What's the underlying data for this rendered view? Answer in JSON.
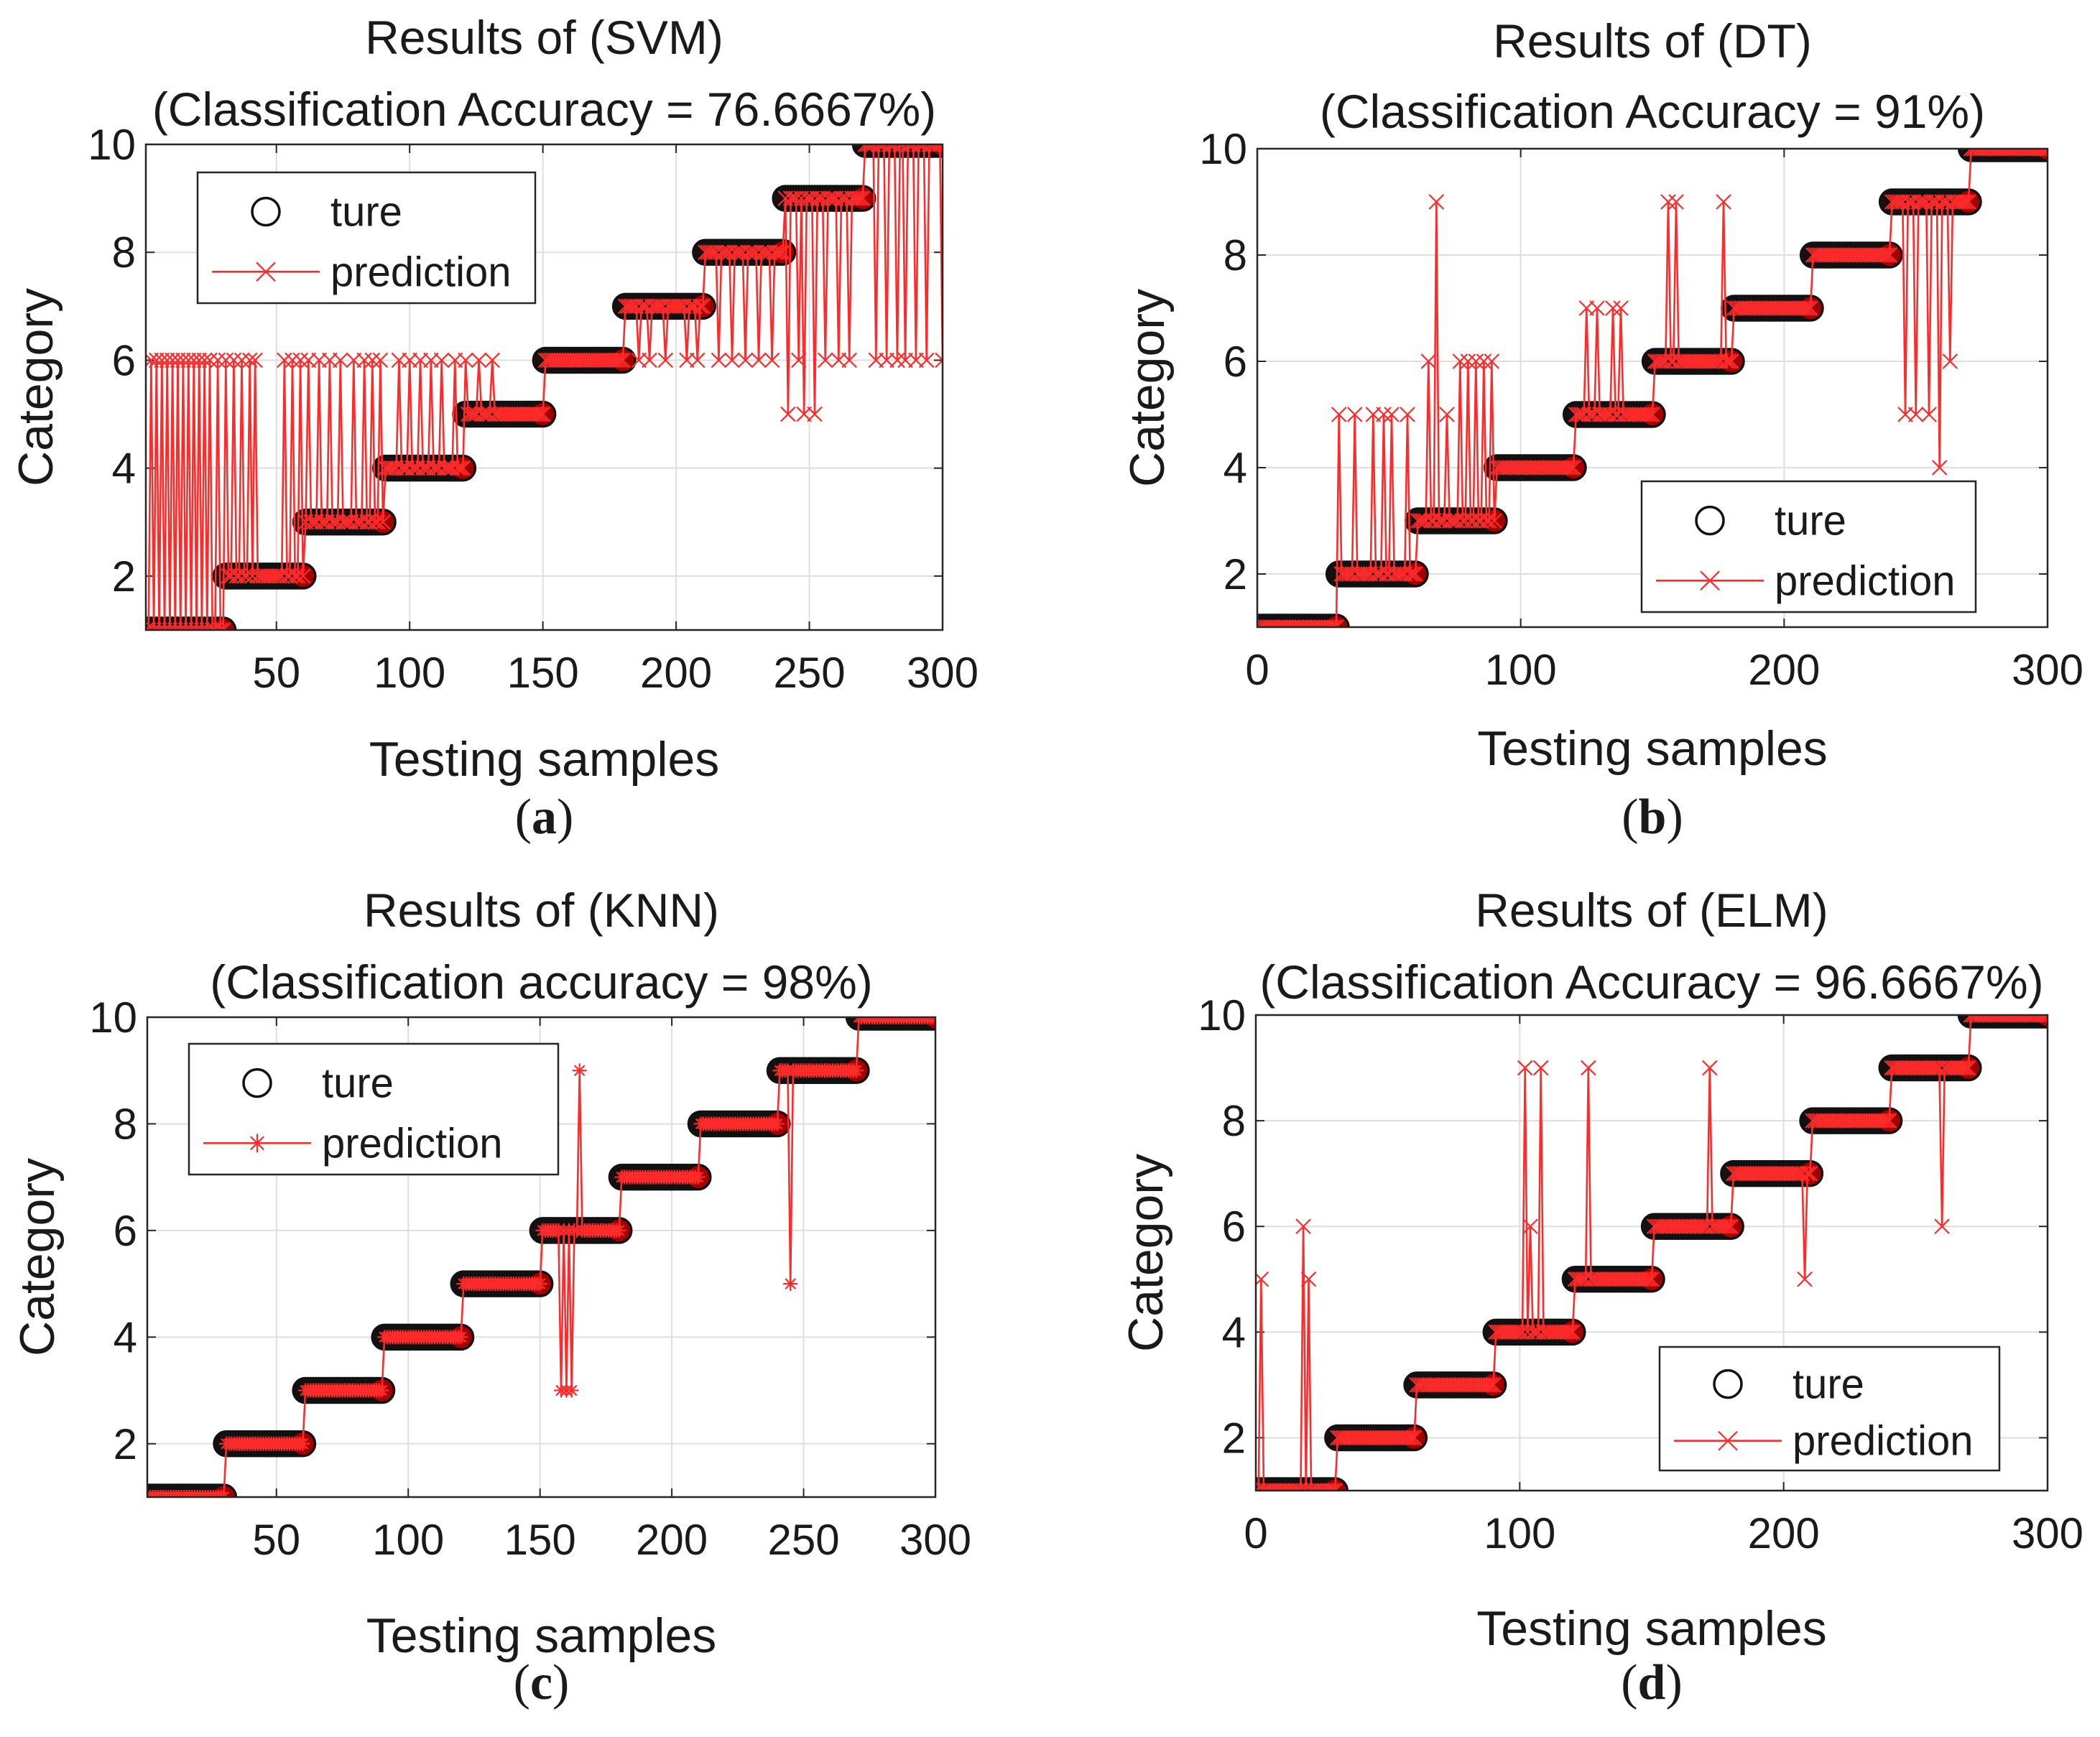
{
  "chart_data": [
    {
      "type": "line",
      "panel": "a",
      "panel_label": "(a)",
      "panel_letter": "a",
      "title_line1": "Results of (SVM)",
      "title_line2": "(Classification Accuracy = 76.6667%)",
      "xlabel": "Testing samples",
      "ylabel": "Category",
      "xlim": [
        1,
        300
      ],
      "ylim": [
        1,
        10
      ],
      "xticks": [
        50,
        100,
        150,
        200,
        250,
        300
      ],
      "yticks": [
        2,
        4,
        6,
        8,
        10
      ],
      "grid": true,
      "legend": {
        "position": "top-left",
        "true_label": "ture",
        "pred_label": "prediction",
        "marker": "x"
      },
      "series": [
        {
          "name": "ture",
          "style": "circle-black",
          "segments": [
            [
              1,
              30,
              1
            ],
            [
              31,
              60,
              2
            ],
            [
              61,
              90,
              3
            ],
            [
              91,
              120,
              4
            ],
            [
              121,
              150,
              5
            ],
            [
              151,
              180,
              6
            ],
            [
              181,
              210,
              7
            ],
            [
              211,
              240,
              8
            ],
            [
              241,
              270,
              9
            ],
            [
              271,
              300,
              10
            ]
          ]
        },
        {
          "name": "prediction",
          "style": "red-line-x",
          "deviations": [
            [
              3,
              6
            ],
            [
              5,
              6
            ],
            [
              7,
              6
            ],
            [
              9,
              6
            ],
            [
              11,
              6
            ],
            [
              13,
              6
            ],
            [
              15,
              6
            ],
            [
              17,
              6
            ],
            [
              19,
              6
            ],
            [
              21,
              6
            ],
            [
              23,
              6
            ],
            [
              25,
              6
            ],
            [
              28,
              6
            ],
            [
              31,
              6
            ],
            [
              34,
              6
            ],
            [
              37,
              6
            ],
            [
              40,
              6
            ],
            [
              42,
              6
            ],
            [
              53,
              6
            ],
            [
              56,
              6
            ],
            [
              59,
              6
            ],
            [
              62,
              6
            ],
            [
              66,
              6
            ],
            [
              70,
              6
            ],
            [
              74,
              6
            ],
            [
              79,
              6
            ],
            [
              83,
              6
            ],
            [
              86,
              6
            ],
            [
              89,
              6
            ],
            [
              96,
              6
            ],
            [
              100,
              6
            ],
            [
              104,
              6
            ],
            [
              108,
              6
            ],
            [
              112,
              6
            ],
            [
              117,
              6
            ],
            [
              121,
              6
            ],
            [
              126,
              6
            ],
            [
              131,
              6
            ],
            [
              186,
              6
            ],
            [
              190,
              6
            ],
            [
              196,
              6
            ],
            [
              204,
              6
            ],
            [
              208,
              6
            ],
            [
              216,
              6
            ],
            [
              221,
              6
            ],
            [
              226,
              6
            ],
            [
              231,
              6
            ],
            [
              236,
              6
            ],
            [
              242,
              5
            ],
            [
              246,
              6
            ],
            [
              248,
              5
            ],
            [
              252,
              5
            ],
            [
              256,
              6
            ],
            [
              261,
              6
            ],
            [
              265,
              6
            ],
            [
              275,
              6
            ],
            [
              279,
              6
            ],
            [
              283,
              6
            ],
            [
              286,
              6
            ],
            [
              290,
              6
            ],
            [
              294,
              6
            ],
            [
              300,
              6
            ]
          ]
        }
      ]
    },
    {
      "type": "line",
      "panel": "b",
      "panel_label": "(b)",
      "panel_letter": "b",
      "title_line1": "Results of (DT)",
      "title_line2": "(Classification Accuracy = 91%)",
      "xlabel": "Testing samples",
      "ylabel": "Category",
      "xlim": [
        0,
        300
      ],
      "ylim": [
        1,
        10
      ],
      "xticks": [
        0,
        100,
        200,
        300
      ],
      "yticks": [
        2,
        4,
        6,
        8,
        10
      ],
      "grid": true,
      "legend": {
        "position": "bottom-right",
        "true_label": "ture",
        "pred_label": "prediction",
        "marker": "x"
      },
      "series": [
        {
          "name": "ture",
          "style": "circle-black",
          "segments": [
            [
              1,
              30,
              1
            ],
            [
              31,
              60,
              2
            ],
            [
              61,
              90,
              3
            ],
            [
              91,
              120,
              4
            ],
            [
              121,
              150,
              5
            ],
            [
              151,
              180,
              6
            ],
            [
              181,
              210,
              7
            ],
            [
              211,
              240,
              8
            ],
            [
              241,
              270,
              9
            ],
            [
              271,
              300,
              10
            ]
          ]
        },
        {
          "name": "prediction",
          "style": "red-line-x",
          "deviations": [
            [
              31,
              5
            ],
            [
              37,
              5
            ],
            [
              44,
              5
            ],
            [
              48,
              5
            ],
            [
              51,
              5
            ],
            [
              57,
              5
            ],
            [
              65,
              6
            ],
            [
              68,
              9
            ],
            [
              72,
              5
            ],
            [
              77,
              6
            ],
            [
              80,
              6
            ],
            [
              83,
              6
            ],
            [
              86,
              6
            ],
            [
              89,
              6
            ],
            [
              125,
              7
            ],
            [
              129,
              7
            ],
            [
              135,
              7
            ],
            [
              138,
              7
            ],
            [
              156,
              9
            ],
            [
              159,
              9
            ],
            [
              177,
              9
            ],
            [
              246,
              5
            ],
            [
              250,
              5
            ],
            [
              255,
              5
            ],
            [
              259,
              4
            ],
            [
              263,
              6
            ]
          ]
        }
      ]
    },
    {
      "type": "line",
      "panel": "c",
      "panel_label": "(c)",
      "panel_letter": "c",
      "title_line1": "Results of (KNN)",
      "title_line2": "(Classification accuracy = 98%)",
      "xlabel": "Testing samples",
      "ylabel": "Category",
      "xlim": [
        1,
        300
      ],
      "ylim": [
        1,
        10
      ],
      "xticks": [
        50,
        100,
        150,
        200,
        250,
        300
      ],
      "yticks": [
        2,
        4,
        6,
        8,
        10
      ],
      "grid": true,
      "legend": {
        "position": "top-left",
        "true_label": "ture",
        "pred_label": "prediction",
        "marker": "star"
      },
      "series": [
        {
          "name": "ture",
          "style": "circle-black",
          "segments": [
            [
              1,
              30,
              1
            ],
            [
              31,
              60,
              2
            ],
            [
              61,
              90,
              3
            ],
            [
              91,
              120,
              4
            ],
            [
              121,
              150,
              5
            ],
            [
              151,
              180,
              6
            ],
            [
              181,
              210,
              7
            ],
            [
              211,
              240,
              8
            ],
            [
              241,
              270,
              9
            ],
            [
              271,
              300,
              10
            ]
          ]
        },
        {
          "name": "prediction",
          "style": "red-line-star",
          "deviations": [
            [
              158,
              3
            ],
            [
              160,
              3
            ],
            [
              162,
              3
            ],
            [
              165,
              9
            ],
            [
              245,
              5
            ]
          ]
        }
      ]
    },
    {
      "type": "line",
      "panel": "d",
      "panel_label": "(d)",
      "panel_letter": "d",
      "title_line1": "Results of (ELM)",
      "title_line2": "(Classification Accuracy = 96.6667%)",
      "xlabel": "Testing samples",
      "ylabel": "Category",
      "xlim": [
        0,
        300
      ],
      "ylim": [
        1,
        10
      ],
      "xticks": [
        0,
        100,
        200,
        300
      ],
      "yticks": [
        2,
        4,
        6,
        8,
        10
      ],
      "grid": true,
      "legend": {
        "position": "bottom-right",
        "true_label": "ture",
        "pred_label": "prediction",
        "marker": "x"
      },
      "series": [
        {
          "name": "ture",
          "style": "circle-black",
          "segments": [
            [
              1,
              30,
              1
            ],
            [
              31,
              60,
              2
            ],
            [
              61,
              90,
              3
            ],
            [
              91,
              120,
              4
            ],
            [
              121,
              150,
              5
            ],
            [
              151,
              180,
              6
            ],
            [
              181,
              210,
              7
            ],
            [
              211,
              240,
              8
            ],
            [
              241,
              270,
              9
            ],
            [
              271,
              300,
              10
            ]
          ]
        },
        {
          "name": "prediction",
          "style": "red-line-x",
          "deviations": [
            [
              2,
              5
            ],
            [
              18,
              6
            ],
            [
              20,
              5
            ],
            [
              102,
              9
            ],
            [
              104,
              6
            ],
            [
              108,
              9
            ],
            [
              126,
              9
            ],
            [
              172,
              9
            ],
            [
              208,
              5
            ],
            [
              260,
              6
            ]
          ]
        }
      ]
    }
  ]
}
